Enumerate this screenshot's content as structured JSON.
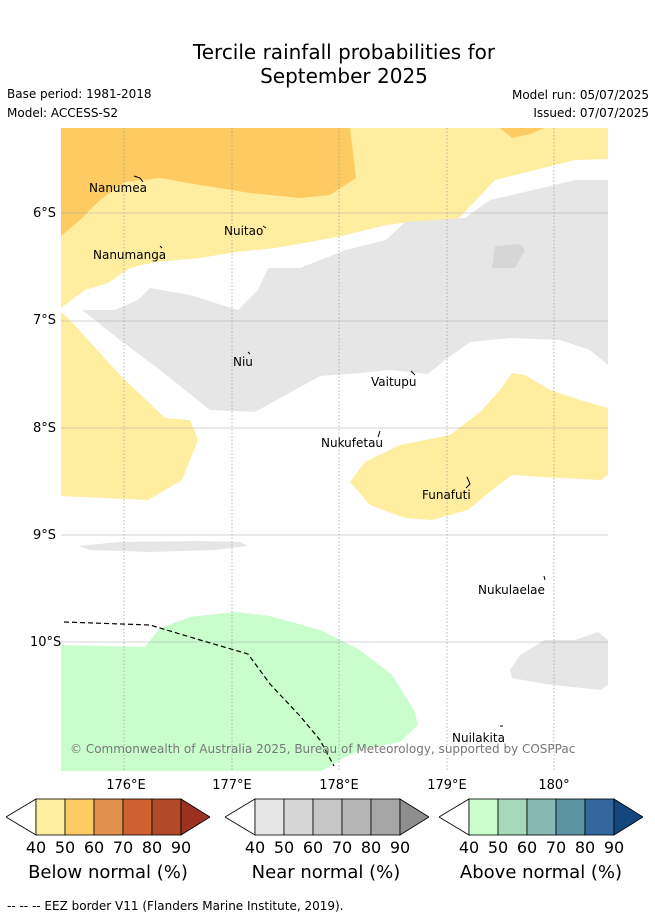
{
  "title_line1": "Tercile rainfall probabilities for",
  "title_line2": "September 2025",
  "base_period": "Base period: 1981-2018",
  "model": "Model: ACCESS-S2",
  "model_run": "Model run: 05/07/2025",
  "issued": "Issued: 07/07/2025",
  "lat_labels": [
    "6°S",
    "7°S",
    "8°S",
    "9°S",
    "10°S"
  ],
  "lon_labels": [
    "176°E",
    "177°E",
    "178°E",
    "179°E",
    "180°"
  ],
  "islands": [
    "Nanumea",
    "Nuitao",
    "Nanumanga",
    "Niu",
    "Vaitupu",
    "Nukufetau",
    "Funafuti",
    "Nukulaelae",
    "Nuilakita"
  ],
  "copyright": "© Commonwealth of Australia 2025, Bureau of Meteorology, supported by COSPPac",
  "legend": {
    "ticks": [
      "40",
      "50",
      "60",
      "70",
      "80",
      "90"
    ],
    "below": {
      "title": "Below normal (%)",
      "colors": [
        "#ffeda0",
        "#fecb62",
        "#e0914c",
        "#cf6131",
        "#b24a29",
        "#9a3122"
      ]
    },
    "near": {
      "title": "Near normal (%)",
      "colors": [
        "#e6e6e6",
        "#d6d6d6",
        "#c6c6c6",
        "#b6b6b6",
        "#a6a6a6",
        "#8e8e8e"
      ]
    },
    "above": {
      "title": "Above normal (%)",
      "colors": [
        "#c9fdcc",
        "#a6d8ba",
        "#85b9b2",
        "#5a94a3",
        "#33669d",
        "#14467f"
      ]
    }
  },
  "footer": "--  --  -- EEZ border V11 (Flanders Marine Institute, 2019)."
}
